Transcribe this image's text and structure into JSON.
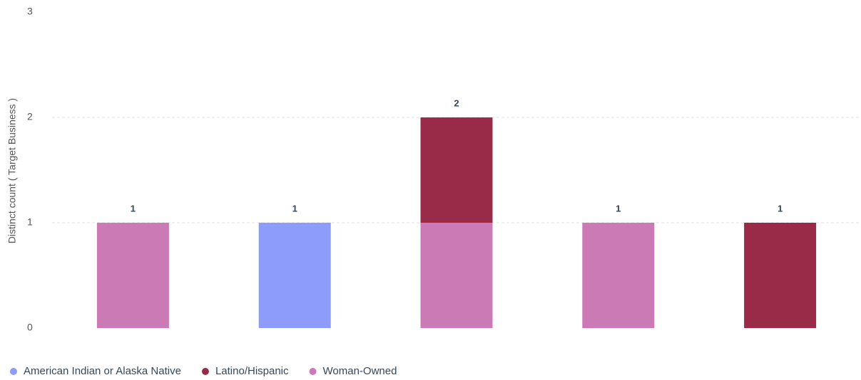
{
  "chart_data": {
    "type": "stacked_bar",
    "y_label": "Distinct count ( Target Business )",
    "categories": [
      null,
      null,
      null,
      null,
      null
    ],
    "series": [
      {
        "name": "American Indian or Alaska Native",
        "color": "#8c9cf8",
        "values": [
          0,
          1,
          0,
          0,
          0
        ]
      },
      {
        "name": "Latino/Hispanic",
        "color": "#9a2b48",
        "values": [
          0,
          0,
          1,
          0,
          1
        ]
      },
      {
        "name": "Woman-Owned",
        "color": "#cc7ab5",
        "values": [
          1,
          0,
          1,
          1,
          0
        ]
      }
    ],
    "totals": [
      1,
      1,
      2,
      1,
      1
    ],
    "ylim": [
      0,
      3
    ],
    "yticks": [
      0,
      1,
      2,
      3
    ],
    "grid": true,
    "legend": "bottom-left"
  }
}
